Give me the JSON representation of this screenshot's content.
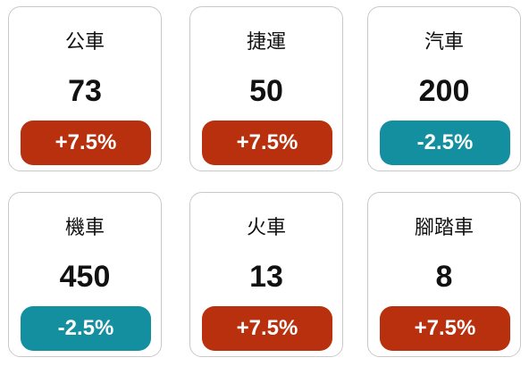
{
  "colors": {
    "positive": "#b8300d",
    "negative": "#148fa0"
  },
  "cards": [
    {
      "label": "公車",
      "value": "73",
      "change": "+7.5%",
      "trend": "positive"
    },
    {
      "label": "捷運",
      "value": "50",
      "change": "+7.5%",
      "trend": "positive"
    },
    {
      "label": "汽車",
      "value": "200",
      "change": "-2.5%",
      "trend": "negative"
    },
    {
      "label": "機車",
      "value": "450",
      "change": "-2.5%",
      "trend": "negative"
    },
    {
      "label": "火車",
      "value": "13",
      "change": "+7.5%",
      "trend": "positive"
    },
    {
      "label": "腳踏車",
      "value": "8",
      "change": "+7.5%",
      "trend": "positive"
    }
  ]
}
